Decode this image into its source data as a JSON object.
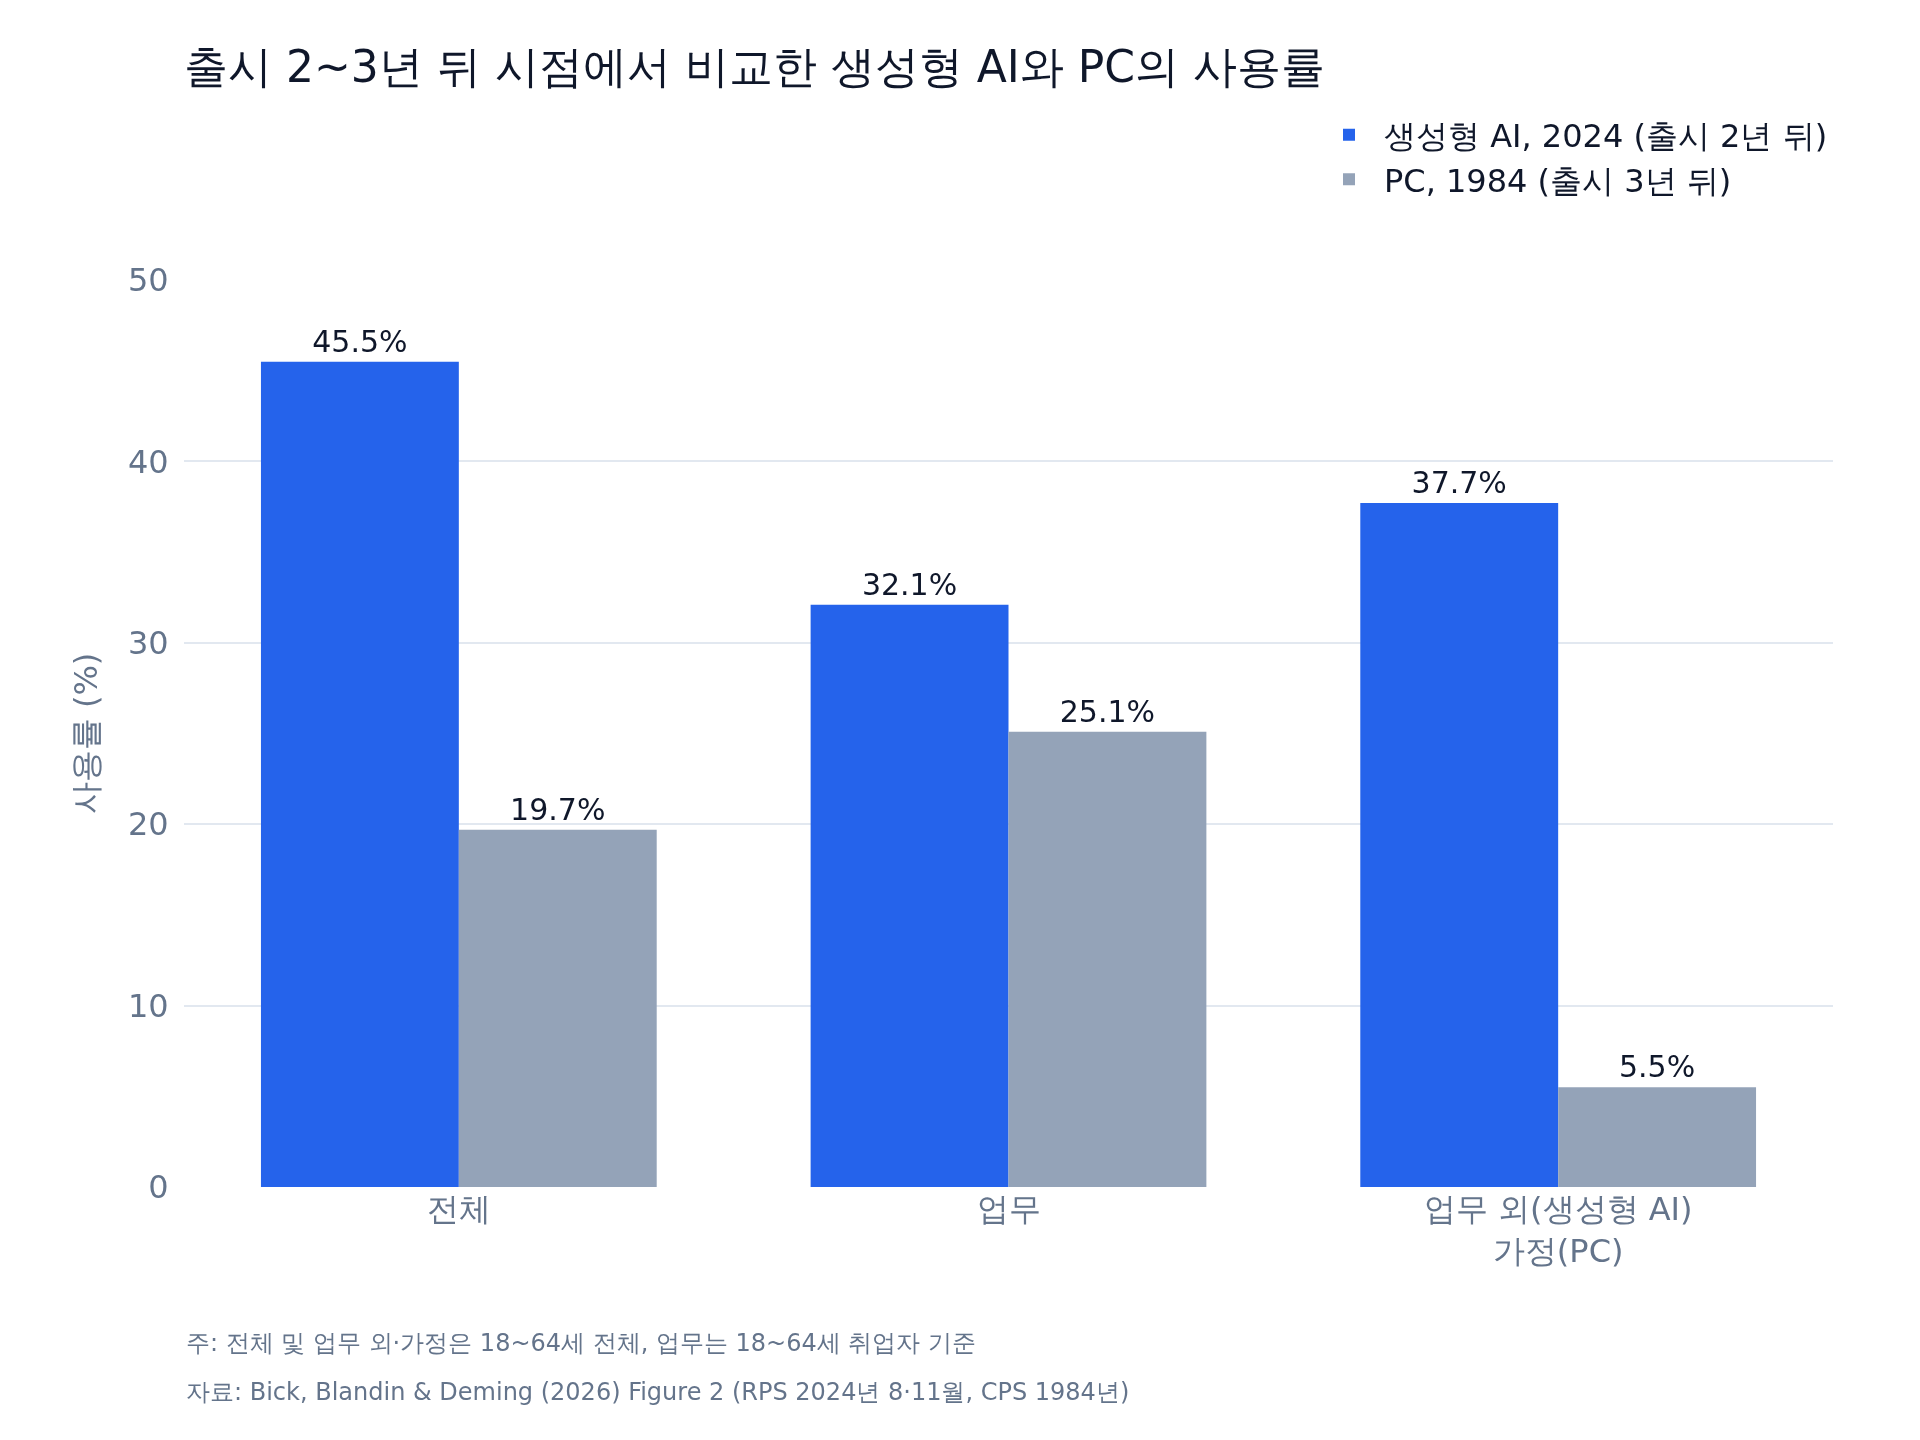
{
  "chart_data": {
    "type": "bar",
    "title": "출시 2~3년 뒤 시점에서 비교한 생성형 AI와 PC의 사용률",
    "ylabel": "사용률 (%)",
    "categories": [
      "전체",
      "업무",
      "업무 외(생성형 AI)\n가정(PC)"
    ],
    "series": [
      {
        "name": "생성형 AI, 2024 (출시 2년 뒤)",
        "color": "#2563eb",
        "values": [
          45.5,
          32.1,
          37.7
        ],
        "value_labels": [
          "45.5%",
          "32.1%",
          "37.7%"
        ]
      },
      {
        "name": "PC, 1984 (출시 3년 뒤)",
        "color": "#94a3b8",
        "values": [
          19.7,
          25.1,
          5.5
        ],
        "value_labels": [
          "19.7%",
          "25.1%",
          "5.5%"
        ]
      }
    ],
    "ylim": [
      0,
      50
    ],
    "yticks": [
      0,
      10,
      20,
      30,
      40,
      50
    ],
    "grid": "y",
    "legend": "top right",
    "annotations": [
      "주: 전체 및 업무 외·가정은 18~64세 전체, 업무는 18~64세 취업자 기준",
      "자료: Bick, Blandin & Deming (2026) Figure 2 (RPS 2024년 8·11월, CPS 1984년)"
    ]
  }
}
